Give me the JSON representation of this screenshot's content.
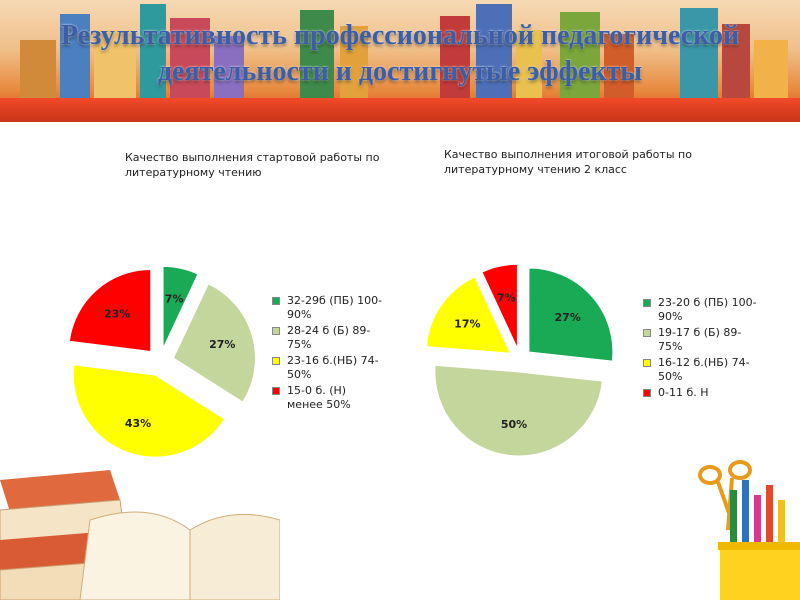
{
  "title": "Результативность профессиональной педагогической деятельности и достигнутые эффекты",
  "title_lines": [
    "Результативность профессиональной педагогической",
    "деятельности и достигнутые эффекты"
  ],
  "colors": {
    "green": "#1aaa55",
    "light_green": "#c3d69b",
    "yellow": "#ffff00",
    "red": "#ff0000",
    "title": "#3c5ea8",
    "shelf": "#e63e20"
  },
  "chart_data": [
    {
      "type": "pie",
      "title_lines": [
        "Качество выполнения стартовой работы по",
        "литературному чтению"
      ],
      "categories": [
        "32-29б  (ПБ) 100-90%",
        "28-24 б (Б) 89-75%",
        "23-16 б.(НБ) 74-50%",
        "15-0 б. (Н) менее 50%"
      ],
      "legend_lines": [
        [
          "32-29б  (ПБ) 100-",
          "90%"
        ],
        [
          "28-24 б (Б) 89-",
          "75%"
        ],
        [
          "23-16 б.(НБ) 74-",
          "50%"
        ],
        [
          "15-0 б. (Н)",
          "менее 50%"
        ]
      ],
      "values": [
        7,
        27,
        43,
        23
      ],
      "labels": [
        "7%",
        "27%",
        "43%",
        "23%"
      ],
      "colors": [
        "#1aaa55",
        "#c3d69b",
        "#ffff00",
        "#ff0000"
      ],
      "exploded": true,
      "legend_position": "right"
    },
    {
      "type": "pie",
      "title_lines": [
        "Качество выполнения  итоговой работы по",
        "литературному чтению 2 класс"
      ],
      "categories": [
        "23-20 б  (ПБ) 100-90%",
        "19-17 б (Б) 89-75%",
        "16-12 б.(НБ) 74-50%",
        "0-11 б. Н"
      ],
      "legend_lines": [
        [
          "23-20 б  (ПБ) 100-",
          "90%"
        ],
        [
          "19-17 б (Б) 89-",
          "75%"
        ],
        [
          "16-12 б.(НБ) 74-",
          "50%"
        ],
        [
          "0-11 б. Н"
        ]
      ],
      "values": [
        27,
        50,
        17,
        7
      ],
      "labels": [
        "27%",
        "50%",
        "17%",
        "7%"
      ],
      "colors": [
        "#1aaa55",
        "#c3d69b",
        "#ffff00",
        "#ff0000"
      ],
      "exploded": true,
      "legend_position": "right"
    }
  ]
}
